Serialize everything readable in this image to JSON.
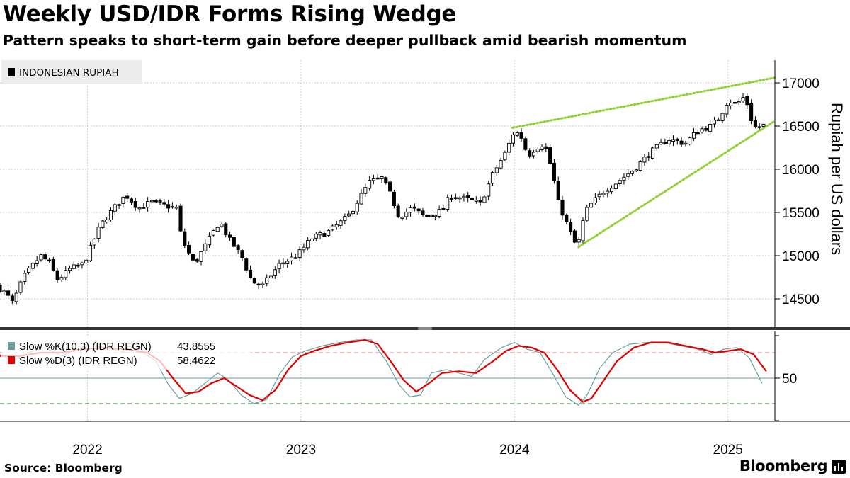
{
  "header": {
    "title": "Weekly USD/IDR Forms Rising Wedge",
    "subtitle": "Pattern speaks to short-term gain before deeper pullback amid bearish momentum"
  },
  "footer": {
    "source": "Source: Bloomberg",
    "brand": "Bloomberg",
    "brand_icon": "bloomberg-terminal-icon"
  },
  "colors": {
    "up_candle_fill": "#ffffff",
    "down_candle_fill": "#000000",
    "wedge": "#8fd134",
    "slow_k": "#6a9e9e",
    "slow_d": "#e00000",
    "overbought_line": "#f08080",
    "oversold_line": "#2a8a2a"
  },
  "chart_data": [
    {
      "type": "candlestick",
      "legend": "INDONESIAN RUPIAH",
      "legend_position": "top-left",
      "ylabel": "Rupiah per US dollars",
      "y_axis_side": "right",
      "ylim": [
        14200,
        17100
      ],
      "yticks": [
        14500,
        15000,
        15500,
        16000,
        16500,
        17000
      ],
      "x_ticks": [
        "2022",
        "2023",
        "2024",
        "2025"
      ],
      "x_tick_positions": [
        2022.0,
        2023.0,
        2024.0,
        2025.0
      ],
      "x_range": [
        2021.59,
        2025.22
      ],
      "grid": true,
      "anchor_closes": [
        [
          2021.59,
          14620
        ],
        [
          2021.62,
          14550
        ],
        [
          2021.65,
          14450
        ],
        [
          2021.7,
          14750
        ],
        [
          2021.78,
          15000
        ],
        [
          2021.82,
          14920
        ],
        [
          2021.86,
          14720
        ],
        [
          2021.92,
          14850
        ],
        [
          2021.98,
          14900
        ],
        [
          2022.06,
          15350
        ],
        [
          2022.14,
          15600
        ],
        [
          2022.18,
          15700
        ],
        [
          2022.24,
          15550
        ],
        [
          2022.3,
          15620
        ],
        [
          2022.36,
          15580
        ],
        [
          2022.42,
          15550
        ],
        [
          2022.44,
          15200
        ],
        [
          2022.5,
          14900
        ],
        [
          2022.56,
          15150
        ],
        [
          2022.62,
          15400
        ],
        [
          2022.66,
          15200
        ],
        [
          2022.72,
          15000
        ],
        [
          2022.77,
          14700
        ],
        [
          2022.82,
          14650
        ],
        [
          2022.9,
          14900
        ],
        [
          2022.98,
          15000
        ],
        [
          2023.05,
          15200
        ],
        [
          2023.13,
          15280
        ],
        [
          2023.22,
          15450
        ],
        [
          2023.32,
          15850
        ],
        [
          2023.38,
          15900
        ],
        [
          2023.42,
          15700
        ],
        [
          2023.46,
          15450
        ],
        [
          2023.52,
          15550
        ],
        [
          2023.58,
          15450
        ],
        [
          2023.66,
          15520
        ],
        [
          2023.7,
          15700
        ],
        [
          2023.78,
          15650
        ],
        [
          2023.84,
          15600
        ],
        [
          2023.9,
          15950
        ],
        [
          2023.96,
          16200
        ],
        [
          2024.0,
          16450
        ],
        [
          2024.04,
          16350
        ],
        [
          2024.06,
          16150
        ],
        [
          2024.1,
          16250
        ],
        [
          2024.14,
          16300
        ],
        [
          2024.18,
          15950
        ],
        [
          2024.2,
          15650
        ],
        [
          2024.24,
          15400
        ],
        [
          2024.28,
          15150
        ],
        [
          2024.3,
          15150
        ],
        [
          2024.33,
          15500
        ],
        [
          2024.36,
          15600
        ],
        [
          2024.42,
          15750
        ],
        [
          2024.48,
          15850
        ],
        [
          2024.56,
          16000
        ],
        [
          2024.64,
          16200
        ],
        [
          2024.72,
          16350
        ],
        [
          2024.8,
          16300
        ],
        [
          2024.86,
          16450
        ],
        [
          2024.92,
          16500
        ],
        [
          2024.96,
          16600
        ],
        [
          2025.0,
          16800
        ],
        [
          2025.04,
          16750
        ],
        [
          2025.08,
          16850
        ],
        [
          2025.12,
          16480
        ],
        [
          2025.16,
          16500
        ],
        [
          2025.18,
          16520
        ]
      ],
      "wedge_lines": [
        {
          "name": "upper",
          "from": [
            2023.99,
            16480
          ],
          "to": [
            2025.22,
            17060
          ]
        },
        {
          "name": "lower",
          "from": [
            2024.3,
            15100
          ],
          "to": [
            2025.22,
            16560
          ]
        }
      ]
    },
    {
      "type": "line",
      "series": [
        {
          "name": "Slow %K(10,3) (IDR REGN)",
          "last_value": "43.8555",
          "color_key": "slow_k",
          "points": [
            [
              2021.59,
              78
            ],
            [
              2021.65,
              70
            ],
            [
              2021.72,
              80
            ],
            [
              2021.8,
              86
            ],
            [
              2021.88,
              76
            ],
            [
              2021.95,
              85
            ],
            [
              2022.02,
              88
            ],
            [
              2022.1,
              86
            ],
            [
              2022.18,
              80
            ],
            [
              2022.26,
              80
            ],
            [
              2022.32,
              70
            ],
            [
              2022.38,
              42
            ],
            [
              2022.43,
              26
            ],
            [
              2022.49,
              32
            ],
            [
              2022.56,
              46
            ],
            [
              2022.61,
              56
            ],
            [
              2022.66,
              48
            ],
            [
              2022.72,
              30
            ],
            [
              2022.78,
              20
            ],
            [
              2022.84,
              25
            ],
            [
              2022.9,
              55
            ],
            [
              2022.96,
              75
            ],
            [
              2023.02,
              82
            ],
            [
              2023.1,
              88
            ],
            [
              2023.18,
              92
            ],
            [
              2023.26,
              95
            ],
            [
              2023.33,
              95
            ],
            [
              2023.4,
              70
            ],
            [
              2023.46,
              42
            ],
            [
              2023.51,
              28
            ],
            [
              2023.56,
              30
            ],
            [
              2023.61,
              56
            ],
            [
              2023.68,
              60
            ],
            [
              2023.74,
              56
            ],
            [
              2023.8,
              52
            ],
            [
              2023.86,
              72
            ],
            [
              2023.94,
              86
            ],
            [
              2024.0,
              92
            ],
            [
              2024.06,
              84
            ],
            [
              2024.12,
              80
            ],
            [
              2024.18,
              55
            ],
            [
              2024.24,
              28
            ],
            [
              2024.3,
              18
            ],
            [
              2024.34,
              30
            ],
            [
              2024.4,
              62
            ],
            [
              2024.46,
              80
            ],
            [
              2024.54,
              90
            ],
            [
              2024.62,
              92
            ],
            [
              2024.7,
              92
            ],
            [
              2024.78,
              88
            ],
            [
              2024.86,
              84
            ],
            [
              2024.92,
              78
            ],
            [
              2024.98,
              84
            ],
            [
              2025.04,
              86
            ],
            [
              2025.1,
              74
            ],
            [
              2025.16,
              44
            ]
          ]
        },
        {
          "name": "Slow %D(3) (IDR REGN)",
          "last_value": "58.4622",
          "color_key": "slow_d",
          "points": [
            [
              2021.59,
              76
            ],
            [
              2021.68,
              76
            ],
            [
              2021.78,
              80
            ],
            [
              2021.88,
              80
            ],
            [
              2021.98,
              84
            ],
            [
              2022.08,
              86
            ],
            [
              2022.18,
              84
            ],
            [
              2022.28,
              80
            ],
            [
              2022.34,
              70
            ],
            [
              2022.4,
              50
            ],
            [
              2022.46,
              32
            ],
            [
              2022.52,
              34
            ],
            [
              2022.58,
              44
            ],
            [
              2022.64,
              50
            ],
            [
              2022.7,
              40
            ],
            [
              2022.76,
              30
            ],
            [
              2022.82,
              24
            ],
            [
              2022.88,
              36
            ],
            [
              2022.94,
              60
            ],
            [
              2023.0,
              76
            ],
            [
              2023.06,
              82
            ],
            [
              2023.14,
              88
            ],
            [
              2023.22,
              92
            ],
            [
              2023.3,
              95
            ],
            [
              2023.36,
              90
            ],
            [
              2023.42,
              70
            ],
            [
              2023.48,
              48
            ],
            [
              2023.54,
              34
            ],
            [
              2023.6,
              44
            ],
            [
              2023.66,
              56
            ],
            [
              2023.74,
              58
            ],
            [
              2023.82,
              56
            ],
            [
              2023.9,
              70
            ],
            [
              2023.96,
              82
            ],
            [
              2024.02,
              88
            ],
            [
              2024.08,
              86
            ],
            [
              2024.14,
              80
            ],
            [
              2024.2,
              60
            ],
            [
              2024.26,
              36
            ],
            [
              2024.32,
              22
            ],
            [
              2024.36,
              26
            ],
            [
              2024.42,
              48
            ],
            [
              2024.48,
              70
            ],
            [
              2024.56,
              86
            ],
            [
              2024.64,
              92
            ],
            [
              2024.72,
              92
            ],
            [
              2024.8,
              88
            ],
            [
              2024.88,
              84
            ],
            [
              2024.94,
              80
            ],
            [
              2025.0,
              82
            ],
            [
              2025.06,
              84
            ],
            [
              2025.12,
              78
            ],
            [
              2025.18,
              58
            ]
          ]
        }
      ],
      "ylim": [
        0,
        100
      ],
      "yticks": [
        50
      ],
      "hlines": [
        {
          "value": 80,
          "style": "dashed",
          "color_key": "overbought_line"
        },
        {
          "value": 50,
          "style": "solid",
          "color_key": "slow_k"
        },
        {
          "value": 20,
          "style": "dashed",
          "color_key": "oversold_line"
        }
      ],
      "legend_position": "top-left"
    }
  ]
}
